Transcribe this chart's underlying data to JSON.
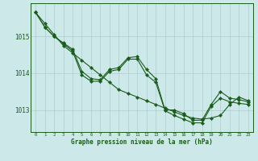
{
  "xlabel": "Graphe pression niveau de la mer (hPa)",
  "background_color": "#cce8e8",
  "grid_color": "#aacfcf",
  "line_color": "#1a5c1a",
  "xlim": [
    -0.5,
    23.5
  ],
  "ylim": [
    1012.4,
    1015.9
  ],
  "yticks": [
    1013,
    1014,
    1015
  ],
  "xticks": [
    0,
    1,
    2,
    3,
    4,
    5,
    6,
    7,
    8,
    9,
    10,
    11,
    12,
    13,
    14,
    15,
    16,
    17,
    18,
    19,
    20,
    21,
    22,
    23
  ],
  "series_straight": [
    1015.65,
    1015.35,
    1015.05,
    1014.75,
    1014.55,
    1014.35,
    1014.15,
    1013.95,
    1013.75,
    1013.55,
    1013.45,
    1013.35,
    1013.25,
    1013.15,
    1013.05,
    1012.95,
    1012.85,
    1012.78,
    1012.75,
    1012.78,
    1012.85,
    1013.15,
    1013.35,
    1013.25
  ],
  "series_wavy1": [
    1015.65,
    1015.25,
    1015.0,
    1014.82,
    1014.65,
    1014.05,
    1013.85,
    1013.82,
    1014.1,
    1014.15,
    1014.42,
    1014.45,
    1014.1,
    1013.85,
    1013.0,
    1013.0,
    1012.9,
    1012.72,
    1012.72,
    1013.15,
    1013.5,
    1013.32,
    1013.28,
    1013.22
  ],
  "series_wavy2": [
    1015.65,
    1015.25,
    1015.0,
    1014.8,
    1014.6,
    1013.95,
    1013.78,
    1013.78,
    1014.05,
    1014.1,
    1014.38,
    1014.38,
    1013.95,
    1013.75,
    1012.98,
    1012.85,
    1012.75,
    1012.65,
    1012.65,
    1013.1,
    1013.32,
    1013.22,
    1013.18,
    1013.15
  ]
}
